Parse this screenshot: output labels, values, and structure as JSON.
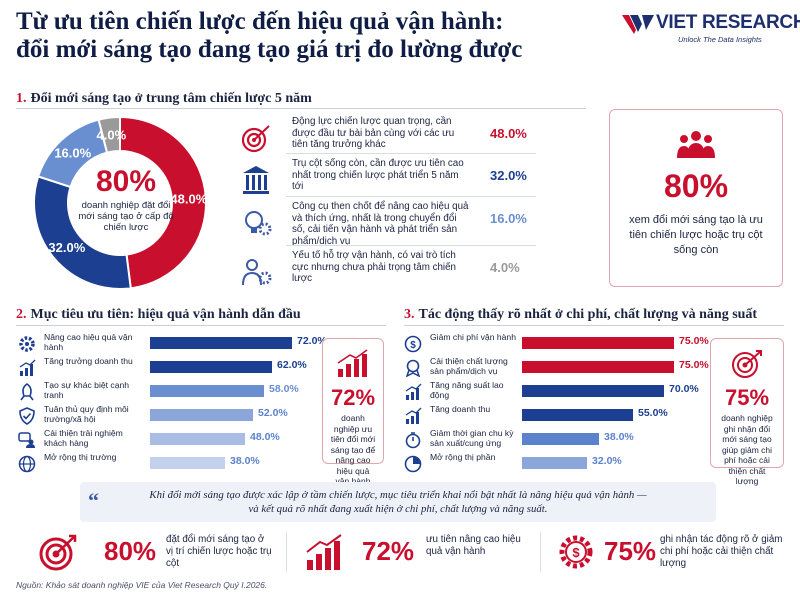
{
  "header": {
    "title_line1": "Từ ưu tiên chiến lược đến hiệu quả vận hành:",
    "title_line2": "đổi mới sáng tạo đang tạo giá trị đo lường được",
    "logo_text": "VIET RESEARCH",
    "logo_tagline": "Unlock The Data Insights",
    "logo_color": "#1e2f6e",
    "accent_color": "#c8102e"
  },
  "section1": {
    "number": "1.",
    "heading": "Đổi mới sáng tạo ở trung tâm chiến lược 5 năm",
    "center_value": "80%",
    "center_text": "doanh nghiệp đặt đổi mới sáng tạo ở cấp độ chiến lược",
    "rows": [
      {
        "icon": "target-icon",
        "text": "Động lực chiến lược quan trọng, cần được đầu tư bài bản cùng với các ưu tiên tăng trưởng khác",
        "pct": "48.0%",
        "color": "#c8102e"
      },
      {
        "icon": "pillar-icon",
        "text": "Trụ cột sống còn, cần được ưu tiên cao nhất trong chiến lược phát triển 5 năm tới",
        "pct": "32.0%",
        "color": "#1d3f91"
      },
      {
        "icon": "lightbulb-gear-icon",
        "text": "Công cụ then chốt để nâng cao hiệu quả và thích ứng, nhất là trong chuyển đổi số, cải tiến vận hành và phát triển sản phẩm/dịch vụ",
        "pct": "16.0%",
        "color": "#6a8fd0"
      },
      {
        "icon": "person-gear-icon",
        "text": "Yếu tố hỗ trợ vận hành, có vai trò tích cực nhưng chưa phải trọng tâm chiến lược",
        "pct": "4.0%",
        "color": "#9a9a9a"
      }
    ],
    "callout": {
      "icon": "people-group-icon",
      "value": "80%",
      "text": "xem đổi mới sáng tạo là ưu tiên chiến lược hoặc trụ cột sống còn"
    }
  },
  "section2": {
    "number": "2.",
    "heading": "Mục tiêu ưu tiên: hiệu quả vận hành dẫn đầu",
    "rows": [
      {
        "icon": "gear-icon",
        "label": "Nâng cao hiệu quả vận hành",
        "value_label": "72.0%"
      },
      {
        "icon": "growth-chart-icon",
        "label": "Tăng trưởng doanh thu",
        "value_label": "62.0%"
      },
      {
        "icon": "rocket-icon",
        "label": "Tạo sự khác biệt cạnh tranh",
        "value_label": "58.0%"
      },
      {
        "icon": "shield-check-icon",
        "label": "Tuân thủ quy định môi trường/xã hội",
        "value_label": "52.0%"
      },
      {
        "icon": "chat-users-icon",
        "label": "Cải thiện trải nghiệm khách hàng",
        "value_label": "48.0%"
      },
      {
        "icon": "globe-icon",
        "label": "Mở rộng thị trường",
        "value_label": "38.0%"
      }
    ],
    "callout": {
      "icon": "bar-growth-icon",
      "value": "72%",
      "text": "doanh nghiệp ưu tiên đổi mới sáng tạo để nâng cao hiệu quả vận hành"
    }
  },
  "section3": {
    "number": "3.",
    "heading": "Tác động thấy rõ nhất ở chi phí, chất lượng và năng suất",
    "rows": [
      {
        "icon": "cost-coin-icon",
        "label": "Giảm chi phí vận hành",
        "value_label": "75.0%"
      },
      {
        "icon": "quality-badge-icon",
        "label": "Cải thiện chất lượng sản phẩm/dịch vụ",
        "value_label": "75.0%"
      },
      {
        "icon": "productivity-bars-icon",
        "label": "Tăng năng suất lao động",
        "value_label": "70.0%"
      },
      {
        "icon": "revenue-bars-icon",
        "label": "Tăng doanh thu",
        "value_label": "55.0%"
      },
      {
        "icon": "stopwatch-icon",
        "label": "Giảm thời gian chu kỳ sản xuất/cung ứng",
        "value_label": "38.0%"
      },
      {
        "icon": "pie-market-icon",
        "label": "Mở rộng thị phần",
        "value_label": "32.0%"
      }
    ],
    "callout": {
      "icon": "target-icon",
      "value": "75%",
      "text": "doanh nghiệp ghi nhận đổi mới sáng tạo giúp giảm chi phí hoặc cải thiện chất lượng"
    }
  },
  "quote": {
    "mark": "“",
    "line1": "Khi đổi mới sáng tạo được xác lập ở tầm chiến lược, mục tiêu triển khai nổi bật nhất là nâng hiệu quả vận hành —",
    "line2": "và kết quả rõ nhất đang xuất hiện ở chi phí, chất lượng và năng suất."
  },
  "kpis": [
    {
      "icon": "target-icon",
      "value": "80%",
      "text": "đặt đổi mới sáng tạo ở vị trí chiến lược hoặc trụ cột"
    },
    {
      "icon": "bar-growth-icon",
      "value": "72%",
      "text": "ưu tiên nâng cao hiệu quả vận hành"
    },
    {
      "icon": "cost-gear-icon",
      "value": "75%",
      "text": "ghi nhận tác động rõ ở giảm chi phí hoặc cải thiện chất lượng"
    }
  ],
  "source": "Nguồn: Khảo sát doanh nghiệp VIE của Viet Research Quý I.2026.",
  "chart_data": [
    {
      "type": "pie",
      "title": "Đổi mới sáng tạo ở trung tâm chiến lược 5 năm",
      "categories": [
        "Động lực chiến lược quan trọng",
        "Trụ cột sống còn",
        "Công cụ then chốt",
        "Yếu tố hỗ trợ vận hành"
      ],
      "values": [
        48.0,
        32.0,
        16.0,
        4.0
      ],
      "labels": [
        "48.0%",
        "32.0%",
        "16.0%",
        "4.0%"
      ],
      "colors": [
        "#c8102e",
        "#1d3f91",
        "#6a8fd0",
        "#9a9a9a"
      ]
    },
    {
      "type": "bar",
      "orientation": "horizontal",
      "title": "Mục tiêu ưu tiên: hiệu quả vận hành dẫn đầu",
      "categories": [
        "Nâng cao hiệu quả vận hành",
        "Tăng trưởng doanh thu",
        "Tạo sự khác biệt cạnh tranh",
        "Tuân thủ quy định môi trường/xã hội",
        "Cải thiện trải nghiệm khách hàng",
        "Mở rộng thị trường"
      ],
      "values": [
        72.0,
        62.0,
        58.0,
        52.0,
        48.0,
        38.0
      ],
      "colors": [
        "#1d3f91",
        "#1d3f91",
        "#6a8fd0",
        "#8aa6da",
        "#a9bde4",
        "#c3d1ec"
      ],
      "xlim": [
        0,
        72
      ]
    },
    {
      "type": "bar",
      "orientation": "horizontal",
      "title": "Tác động thấy rõ nhất ở chi phí, chất lượng và năng suất",
      "categories": [
        "Giảm chi phí vận hành",
        "Cải thiện chất lượng sản phẩm/dịch vụ",
        "Tăng năng suất lao động",
        "Tăng doanh thu",
        "Giảm thời gian chu kỳ sản xuất/cung ứng",
        "Mở rộng thị phần"
      ],
      "values": [
        75.0,
        75.0,
        70.0,
        55.0,
        38.0,
        32.0
      ],
      "colors": [
        "#c8102e",
        "#c8102e",
        "#1d3f91",
        "#1d3f91",
        "#5b82cc",
        "#8aa6da"
      ],
      "xlim": [
        0,
        75
      ]
    }
  ]
}
